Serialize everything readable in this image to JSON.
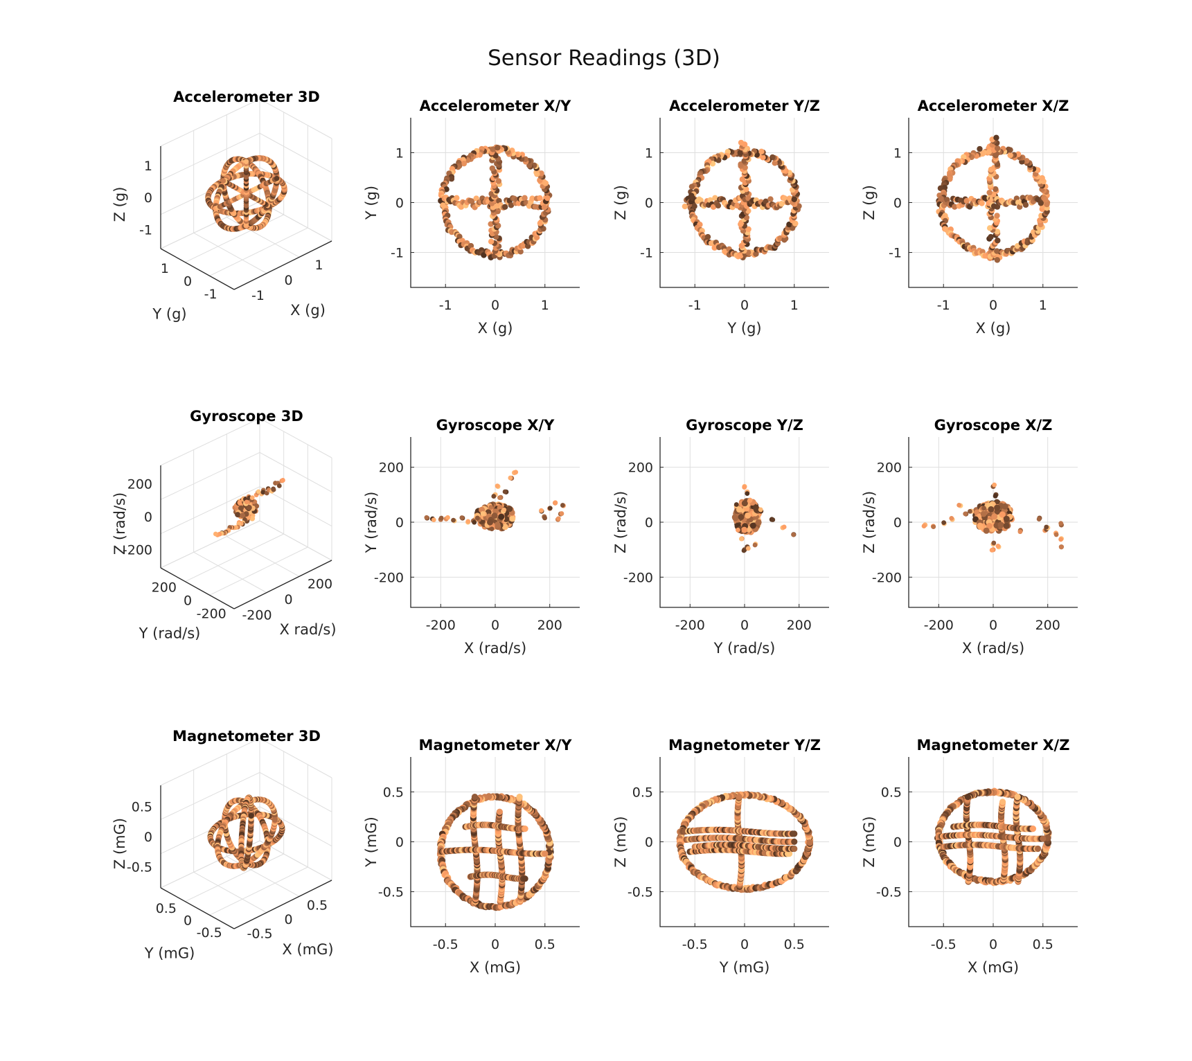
{
  "figure": {
    "title": "Sensor Readings (3D)"
  },
  "chart_data": [
    {
      "id": "acc3d",
      "type": "scatter",
      "projection": "3d",
      "title": "Accelerometer 3D",
      "xlabel": "X (g)",
      "ylabel": "Y (g)",
      "zlabel": "Z (g)",
      "xticks": [
        -1,
        0,
        1
      ],
      "yticks": [
        -1,
        0,
        1
      ],
      "zticks": [
        -1,
        0,
        1
      ],
      "xlim": [
        -1.6,
        1.6
      ],
      "ylim": [
        -1.6,
        1.6
      ],
      "zlim": [
        -1.6,
        1.6
      ],
      "grid": true,
      "colormap": "copper",
      "shape": "sphere-rings",
      "data": {
        "radius": 1.0,
        "rings": [
          "xy",
          "yz",
          "xz"
        ],
        "cross_axes": [
          "x",
          "y",
          "z"
        ]
      }
    },
    {
      "id": "accxy",
      "type": "scatter",
      "title": "Accelerometer X/Y",
      "xlabel": "X (g)",
      "ylabel": "Y (g)",
      "xticks": [
        -1,
        0,
        1
      ],
      "yticks": [
        -1,
        0,
        1
      ],
      "xlim": [
        -1.7,
        1.7
      ],
      "ylim": [
        -1.7,
        1.7
      ],
      "grid": true,
      "colormap": "copper",
      "shape": "circle-cross",
      "data": {
        "radius": 1.05,
        "hline": [
          -1.05,
          1.05
        ],
        "vline": [
          -1.1,
          1.1
        ]
      }
    },
    {
      "id": "accyz",
      "type": "scatter",
      "title": "Accelerometer Y/Z",
      "xlabel": "Y (g)",
      "ylabel": "Z (g)",
      "xticks": [
        -1,
        0,
        1
      ],
      "yticks": [
        -1,
        0,
        1
      ],
      "xlim": [
        -1.7,
        1.7
      ],
      "ylim": [
        -1.7,
        1.7
      ],
      "grid": true,
      "colormap": "copper",
      "shape": "circle-cross",
      "data": {
        "radius": 1.05,
        "hline": [
          -1.2,
          1.0
        ],
        "vline": [
          -1.1,
          1.2
        ]
      }
    },
    {
      "id": "accxz",
      "type": "scatter",
      "title": "Accelerometer X/Z",
      "xlabel": "X (g)",
      "ylabel": "Z (g)",
      "xticks": [
        -1,
        0,
        1
      ],
      "yticks": [
        -1,
        0,
        1
      ],
      "xlim": [
        -1.7,
        1.7
      ],
      "ylim": [
        -1.7,
        1.7
      ],
      "grid": true,
      "colormap": "copper",
      "shape": "circle-cross",
      "data": {
        "radius": 1.05,
        "hline": [
          -1.05,
          1.05
        ],
        "vline": [
          -1.15,
          1.3
        ]
      }
    },
    {
      "id": "gyr3d",
      "type": "scatter",
      "projection": "3d",
      "title": "Gyroscope 3D",
      "xlabel": "X rad/s)",
      "ylabel": "Y (rad/s)",
      "zlabel": "Z (rad/s)",
      "xticks": [
        -200,
        0,
        200
      ],
      "yticks": [
        -200,
        0,
        200
      ],
      "zticks": [
        -200,
        0,
        200
      ],
      "xlim": [
        -310,
        310
      ],
      "ylim": [
        -310,
        310
      ],
      "zlim": [
        -310,
        310
      ],
      "grid": true,
      "colormap": "copper",
      "shape": "cluster",
      "data": {
        "center": [
          0,
          0,
          0
        ],
        "spread": 60,
        "tail_x": [
          20,
          245
        ]
      }
    },
    {
      "id": "gyrxy",
      "type": "scatter",
      "title": "Gyroscope X/Y",
      "xlabel": "X (rad/s)",
      "ylabel": "Y (rad/s)",
      "xticks": [
        -200,
        0,
        200
      ],
      "yticks": [
        -200,
        0,
        200
      ],
      "xlim": [
        -310,
        310
      ],
      "ylim": [
        -310,
        310
      ],
      "grid": true,
      "colormap": "copper",
      "shape": "cluster",
      "data": {
        "points": [
          [
            -250,
            15
          ],
          [
            -230,
            12
          ],
          [
            -200,
            10
          ],
          [
            -180,
            12
          ],
          [
            -150,
            5
          ],
          [
            -120,
            15
          ],
          [
            -100,
            0
          ],
          [
            -80,
            5
          ],
          [
            -60,
            10
          ],
          [
            -40,
            30
          ],
          [
            -20,
            60
          ],
          [
            0,
            100
          ],
          [
            10,
            130
          ],
          [
            20,
            90
          ],
          [
            30,
            40
          ],
          [
            -10,
            -20
          ],
          [
            40,
            110
          ],
          [
            60,
            160
          ],
          [
            70,
            180
          ],
          [
            170,
            40
          ],
          [
            200,
            50
          ],
          [
            220,
            70
          ],
          [
            240,
            30
          ],
          [
            250,
            60
          ],
          [
            180,
            20
          ],
          [
            230,
            10
          ]
        ],
        "core": {
          "cx": 0,
          "cy": 20,
          "rx": 70,
          "ry": 45
        }
      }
    },
    {
      "id": "gyryz",
      "type": "scatter",
      "title": "Gyroscope Y/Z",
      "xlabel": "Y (rad/s)",
      "ylabel": "Z (rad/s)",
      "xticks": [
        -200,
        0,
        200
      ],
      "yticks": [
        -200,
        0,
        200
      ],
      "xlim": [
        -310,
        310
      ],
      "ylim": [
        -310,
        310
      ],
      "grid": true,
      "colormap": "copper",
      "shape": "cluster",
      "data": {
        "points": [
          [
            0,
            130
          ],
          [
            10,
            110
          ],
          [
            -30,
            60
          ],
          [
            20,
            80
          ],
          [
            60,
            40
          ],
          [
            100,
            10
          ],
          [
            140,
            -20
          ],
          [
            180,
            -45
          ],
          [
            0,
            -100
          ],
          [
            10,
            -90
          ],
          [
            40,
            -80
          ],
          [
            -10,
            -60
          ],
          [
            -20,
            -30
          ]
        ],
        "core": {
          "cx": 10,
          "cy": 20,
          "rx": 45,
          "ry": 60
        }
      }
    },
    {
      "id": "gyrxz",
      "type": "scatter",
      "title": "Gyroscope X/Z",
      "xlabel": "X (rad/s)",
      "ylabel": "Z (rad/s)",
      "xticks": [
        -200,
        0,
        200
      ],
      "yticks": [
        -200,
        0,
        200
      ],
      "xlim": [
        -310,
        310
      ],
      "ylim": [
        -310,
        310
      ],
      "grid": true,
      "colormap": "copper",
      "shape": "cluster",
      "data": {
        "points": [
          [
            -250,
            -10
          ],
          [
            -220,
            -15
          ],
          [
            -180,
            -5
          ],
          [
            -150,
            10
          ],
          [
            -120,
            60
          ],
          [
            -100,
            30
          ],
          [
            -80,
            40
          ],
          [
            -40,
            50
          ],
          [
            0,
            130
          ],
          [
            10,
            100
          ],
          [
            0,
            -80
          ],
          [
            0,
            -100
          ],
          [
            20,
            -90
          ],
          [
            100,
            -30
          ],
          [
            170,
            15
          ],
          [
            190,
            -30
          ],
          [
            230,
            -40
          ],
          [
            250,
            -60
          ],
          [
            250,
            -90
          ],
          [
            250,
            -10
          ],
          [
            200,
            -20
          ]
        ],
        "core": {
          "cx": 0,
          "cy": 20,
          "rx": 70,
          "ry": 55
        }
      }
    },
    {
      "id": "mag3d",
      "type": "scatter",
      "projection": "3d",
      "title": "Magnetometer 3D",
      "xlabel": "X (mG)",
      "ylabel": "Y (mG)",
      "zlabel": "Z (mG)",
      "xticks": [
        -0.5,
        0,
        0.5
      ],
      "yticks": [
        -0.5,
        0,
        0.5
      ],
      "zticks": [
        -0.5,
        0,
        0.5
      ],
      "xlim": [
        -0.85,
        0.85
      ],
      "ylim": [
        -0.85,
        0.85
      ],
      "zlim": [
        -0.85,
        0.85
      ],
      "grid": true,
      "colormap": "copper",
      "shape": "sphere-rings",
      "data": {
        "radius": 0.5,
        "rings": [
          "xy",
          "yz",
          "xz",
          "tilted"
        ],
        "cross_axes": []
      }
    },
    {
      "id": "magxy",
      "type": "scatter",
      "title": "Magnetometer X/Y",
      "xlabel": "X (mG)",
      "ylabel": "Y (mG)",
      "xticks": [
        -0.5,
        0,
        0.5
      ],
      "yticks": [
        -0.5,
        0,
        0.5
      ],
      "xlim": [
        -0.85,
        0.85
      ],
      "ylim": [
        -0.85,
        0.85
      ],
      "grid": true,
      "colormap": "copper",
      "shape": "ellipse-lines",
      "data": {
        "center": [
          0,
          -0.1
        ],
        "rx": 0.55,
        "ry": 0.55,
        "vlines": [
          [
            -0.2,
            -0.6,
            0.45
          ],
          [
            0.25,
            -0.6,
            0.45
          ],
          [
            0.05,
            -0.6,
            0.3
          ]
        ],
        "hlines": [
          [
            -0.55,
            0.5,
            -0.1
          ],
          [
            -0.3,
            0.3,
            0.15
          ],
          [
            -0.25,
            0.3,
            -0.35
          ]
        ]
      }
    },
    {
      "id": "magyz",
      "type": "scatter",
      "title": "Magnetometer Y/Z",
      "xlabel": "Y (mG)",
      "ylabel": "Z (mG)",
      "xticks": [
        -0.5,
        0,
        0.5
      ],
      "yticks": [
        -0.5,
        0,
        0.5
      ],
      "xlim": [
        -0.85,
        0.85
      ],
      "ylim": [
        -0.85,
        0.85
      ],
      "grid": true,
      "colormap": "copper",
      "shape": "ellipse-lines",
      "data": {
        "center": [
          0,
          0.0
        ],
        "rx": 0.65,
        "ry": 0.47,
        "vlines": [
          [
            -0.05,
            -0.45,
            0.45
          ]
        ],
        "hlines": [
          [
            -0.65,
            0.5,
            0.1
          ],
          [
            -0.6,
            0.5,
            0.02
          ],
          [
            -0.55,
            0.45,
            -0.1
          ],
          [
            -0.5,
            0.5,
            -0.05
          ]
        ]
      }
    },
    {
      "id": "magxz",
      "type": "scatter",
      "title": "Magnetometer X/Z",
      "xlabel": "X (mG)",
      "ylabel": "Z (mG)",
      "xticks": [
        -0.5,
        0,
        0.5
      ],
      "yticks": [
        -0.5,
        0,
        0.5
      ],
      "xlim": [
        -0.85,
        0.85
      ],
      "ylim": [
        -0.85,
        0.85
      ],
      "grid": true,
      "colormap": "copper",
      "shape": "ellipse-lines",
      "data": {
        "center": [
          0,
          0.05
        ],
        "rx": 0.55,
        "ry": 0.45,
        "vlines": [
          [
            -0.25,
            -0.4,
            0.45
          ],
          [
            0.25,
            -0.4,
            0.45
          ],
          [
            0.1,
            -0.4,
            0.4
          ]
        ],
        "hlines": [
          [
            -0.55,
            0.5,
            0.05
          ],
          [
            -0.4,
            0.4,
            0.15
          ],
          [
            -0.5,
            0.45,
            -0.05
          ]
        ]
      }
    }
  ]
}
